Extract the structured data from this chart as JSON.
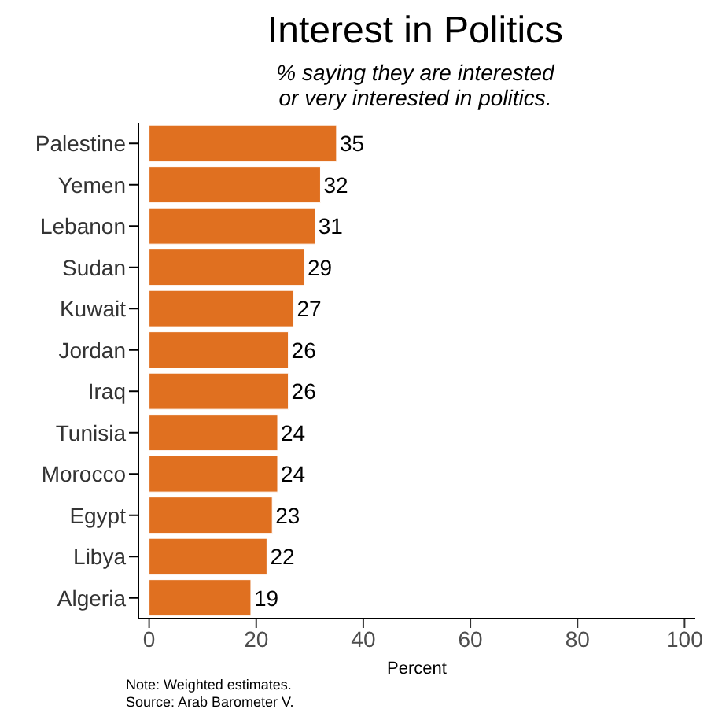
{
  "chart_data": {
    "type": "bar",
    "orientation": "horizontal",
    "title": "Interest in Politics",
    "subtitle": "% saying they are interested\nor very interested in politics.",
    "xlabel": "Percent",
    "categories": [
      "Palestine",
      "Yemen",
      "Lebanon",
      "Sudan",
      "Kuwait",
      "Jordan",
      "Iraq",
      "Tunisia",
      "Morocco",
      "Egypt",
      "Libya",
      "Algeria"
    ],
    "values": [
      35,
      32,
      31,
      29,
      27,
      26,
      26,
      24,
      24,
      23,
      22,
      19
    ],
    "color": "#e07020",
    "data_labels": true,
    "xlim": [
      -2,
      102
    ],
    "xticks": [
      0,
      20,
      40,
      60,
      80,
      100
    ],
    "grid": false,
    "annotations": [
      "Note: Weighted estimates.",
      "Source: Arab Barometer V."
    ]
  }
}
